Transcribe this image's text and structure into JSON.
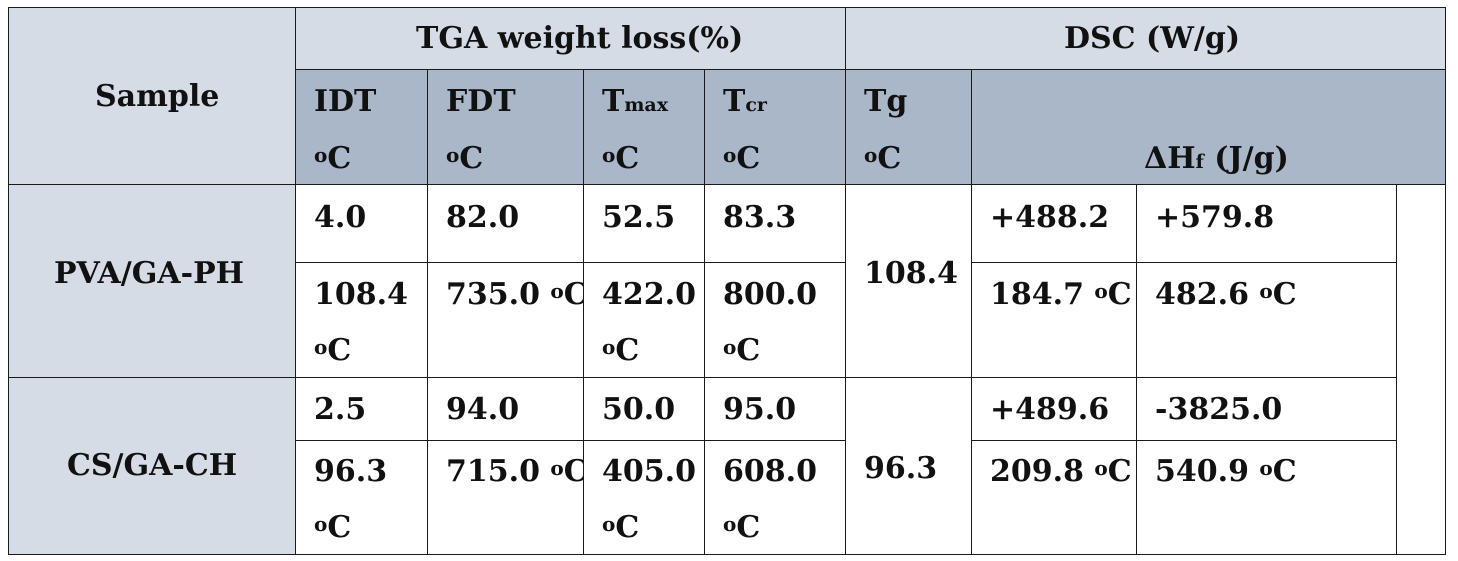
{
  "header": {
    "sample": "Sample",
    "tga_group": "TGA weight loss(%)",
    "dsc_group": "DSC (W/g)",
    "idt": "IDT",
    "fdt": "FDT",
    "tmax_main": "T",
    "tmax_sub": "max",
    "tcr_main": "T",
    "tcr_sub": "cr",
    "tg": "Tg",
    "deg_o": "o",
    "deg_c": "C",
    "dh_main": "ΔH",
    "dh_sub": "f",
    "dh_unit": " (J/g)"
  },
  "rows": [
    {
      "sample": "PVA/GA-PH",
      "loss": [
        "4.0",
        "82.0",
        "52.5",
        "83.3"
      ],
      "temp": [
        "108.4",
        "735.0",
        "422.0",
        "800.0"
      ],
      "tg": "108.4",
      "dh": [
        "+488.2",
        "+579.8"
      ],
      "dh_temp": [
        "184.7",
        "482.6"
      ]
    },
    {
      "sample": "CS/GA-CH",
      "loss": [
        "2.5",
        "94.0",
        "50.0",
        "95.0"
      ],
      "temp": [
        "96.3",
        "715.0",
        "405.0",
        "608.0"
      ],
      "tg": "96.3",
      "dh": [
        "+489.6",
        "-3825.0"
      ],
      "dh_temp": [
        "209.8",
        "540.9"
      ]
    }
  ]
}
